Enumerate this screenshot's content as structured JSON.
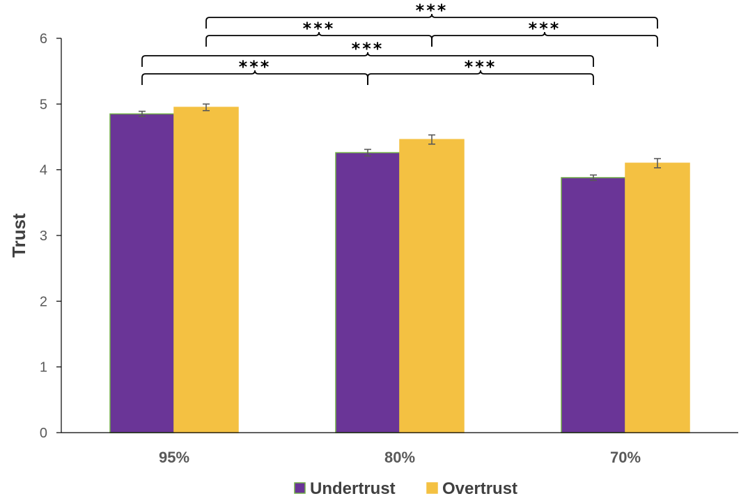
{
  "chart_data": {
    "type": "bar",
    "title": "",
    "xlabel": "",
    "ylabel": "Trust",
    "ylim": [
      0,
      6
    ],
    "yticks": [
      0,
      1,
      2,
      3,
      4,
      5,
      6
    ],
    "categories": [
      "95%",
      "80%",
      "70%"
    ],
    "series": [
      {
        "name": "Undertrust",
        "color": "#6A3597",
        "edge": "#70AD47",
        "values": [
          4.85,
          4.26,
          3.88
        ],
        "errors": [
          0.04,
          0.05,
          0.04
        ]
      },
      {
        "name": "Overtrust",
        "color": "#F4C142",
        "edge": "#F4C142",
        "values": [
          4.95,
          4.46,
          4.1
        ],
        "errors": [
          0.05,
          0.07,
          0.07
        ]
      }
    ],
    "grid": false,
    "legend_position": "bottom-center",
    "significance": [
      {
        "from": [
          0,
          0
        ],
        "to": [
          1,
          0
        ],
        "label": "***",
        "level": 1
      },
      {
        "from": [
          1,
          0
        ],
        "to": [
          2,
          0
        ],
        "label": "***",
        "level": 1
      },
      {
        "from": [
          0,
          0
        ],
        "to": [
          2,
          0
        ],
        "label": "***",
        "level": 2
      },
      {
        "from": [
          0,
          1
        ],
        "to": [
          1,
          1
        ],
        "label": "***",
        "level": 3
      },
      {
        "from": [
          1,
          1
        ],
        "to": [
          2,
          1
        ],
        "label": "***",
        "level": 3
      },
      {
        "from": [
          0,
          1
        ],
        "to": [
          2,
          1
        ],
        "label": "***",
        "level": 4
      }
    ]
  }
}
